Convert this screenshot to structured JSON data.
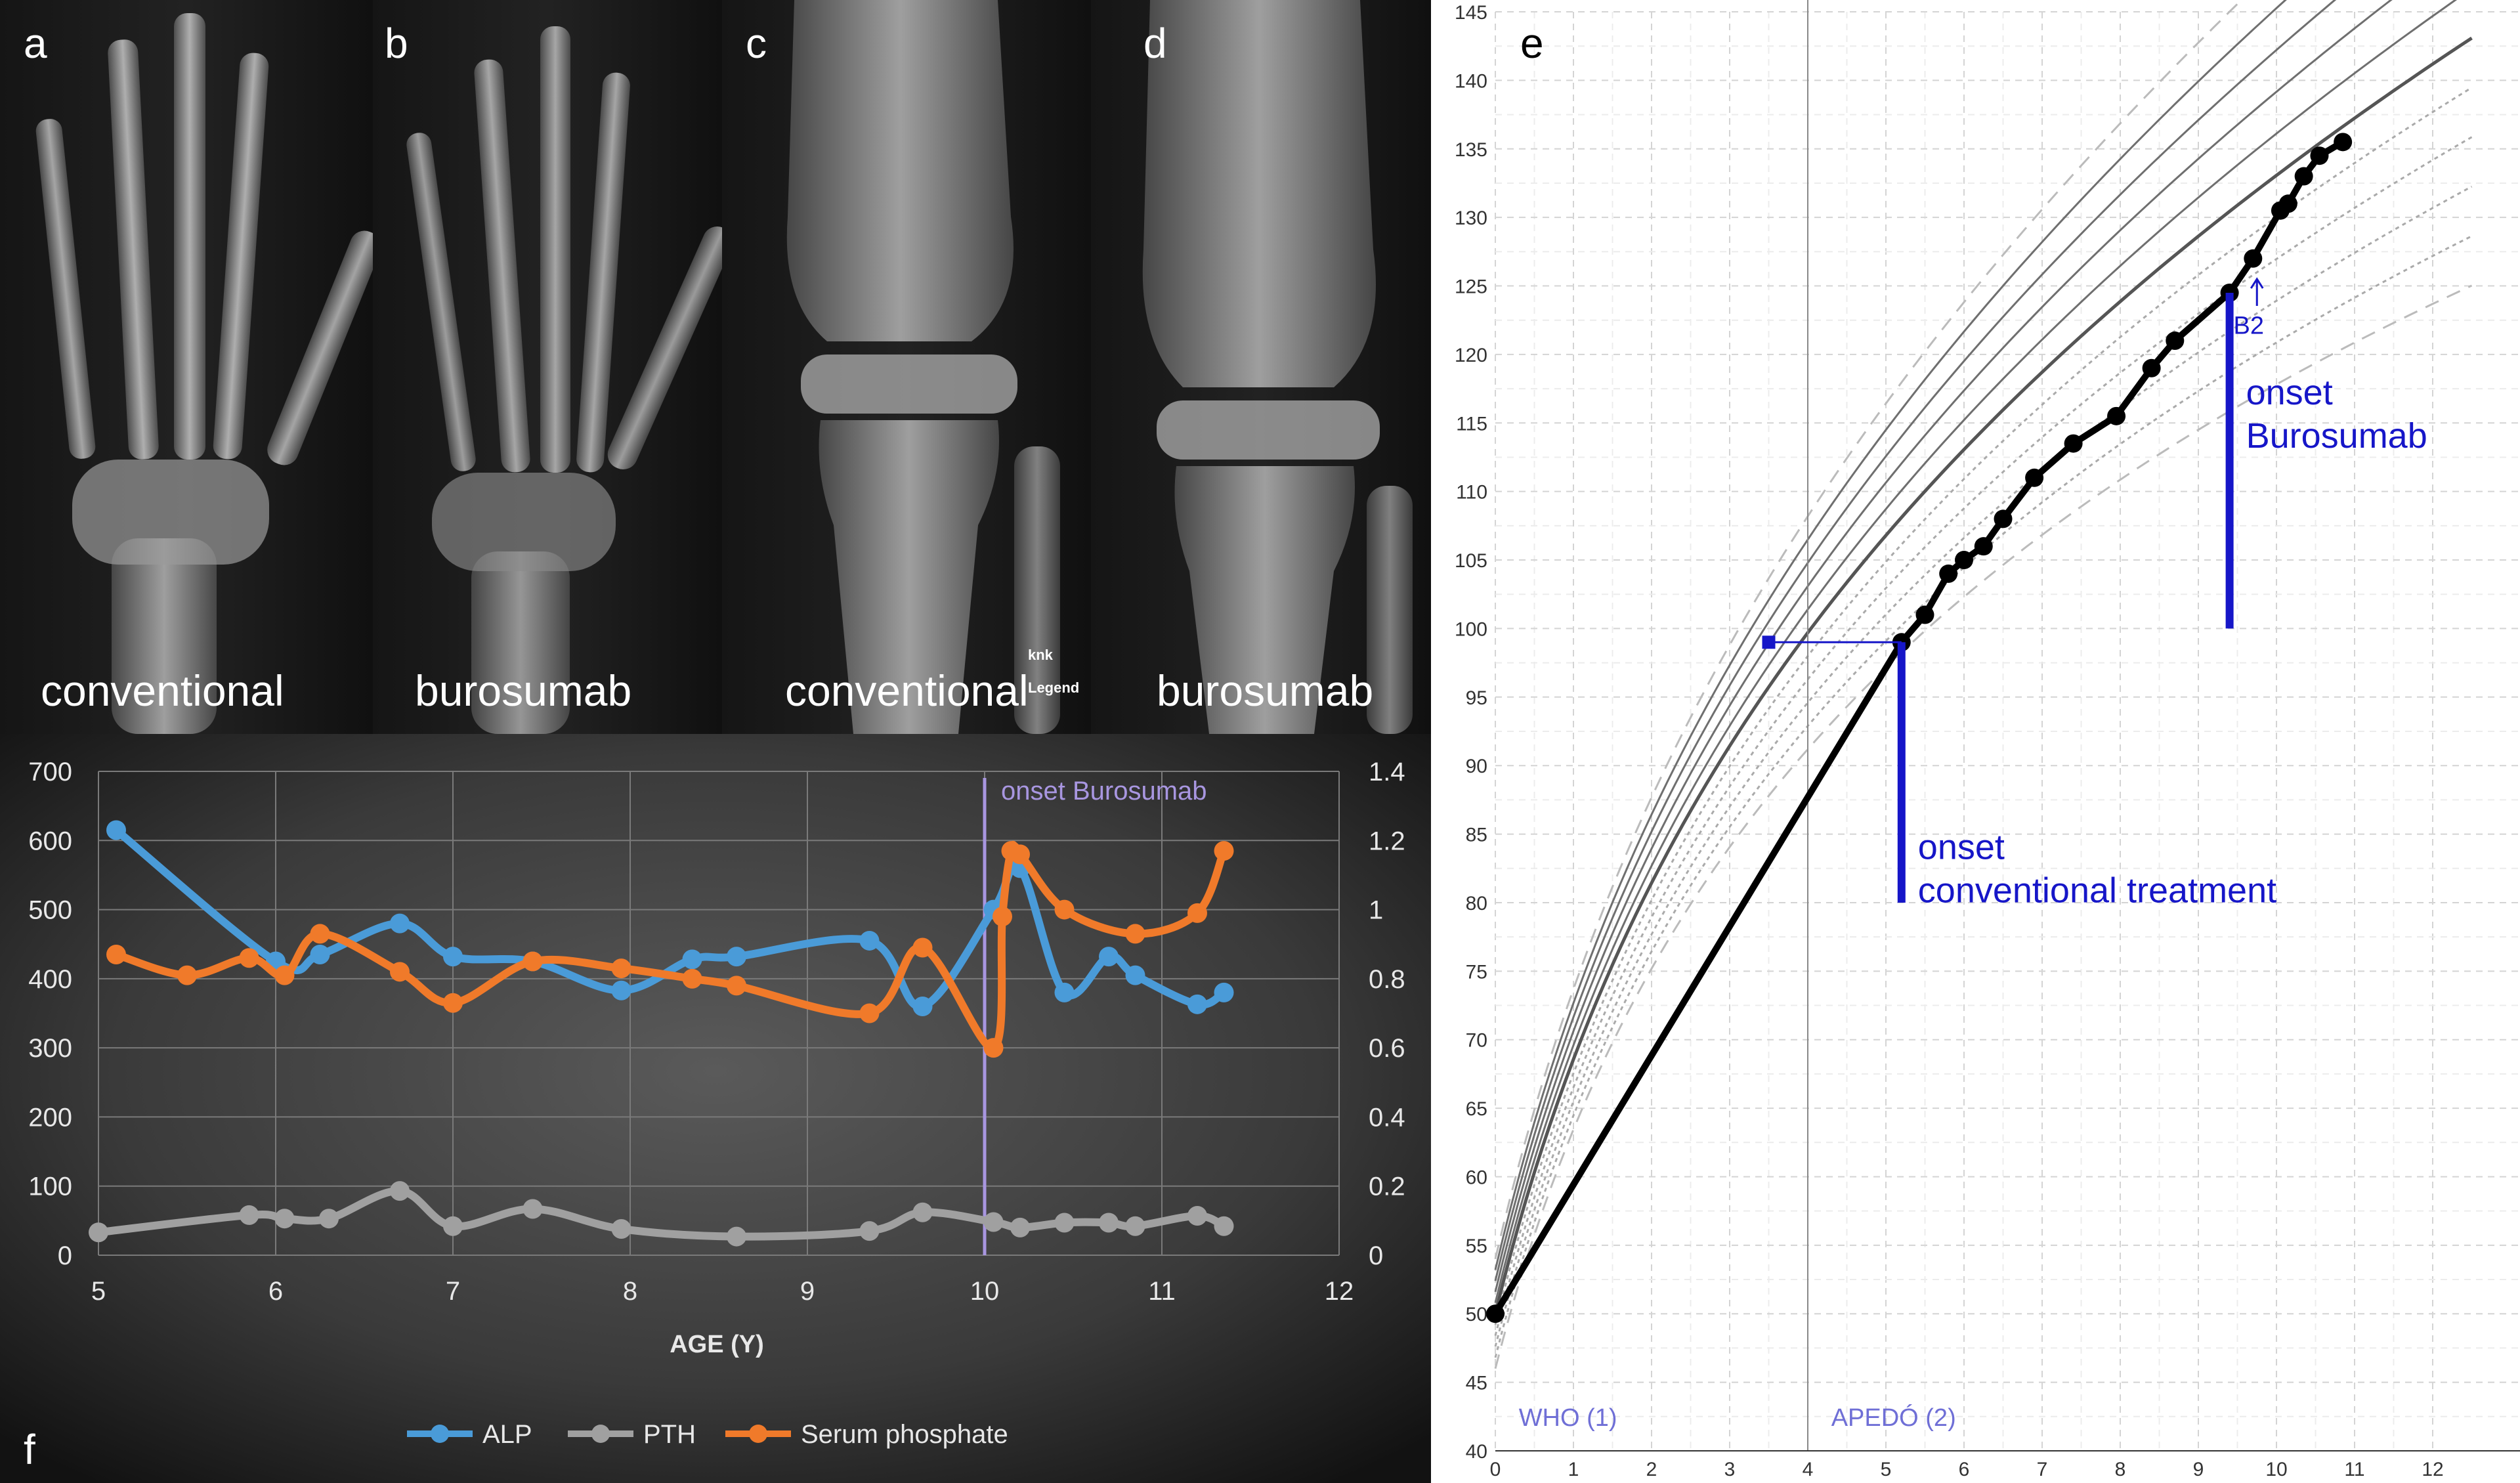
{
  "xray_panels": [
    {
      "letter": "a",
      "label": "conventional",
      "kind": "hand"
    },
    {
      "letter": "b",
      "label": "burosumab",
      "kind": "hand"
    },
    {
      "letter": "c",
      "label": "conventional",
      "kind": "knee",
      "marker_lines": [
        "knk",
        "Legend"
      ]
    },
    {
      "letter": "d",
      "label": "burosumab",
      "kind": "knee"
    }
  ],
  "panel_f": {
    "letter": "f",
    "onset_label": "onset Burosumab",
    "onset_age": 10,
    "colors": {
      "ALP": "#4a9bd8",
      "PTH": "#a0a0a0",
      "Serum phosphate": "#f07a2a",
      "onset": "#a896e0"
    },
    "chart_data": {
      "type": "line",
      "xlabel": "AGE (Y)",
      "xlim": [
        5,
        12
      ],
      "x_ticks": [
        "5",
        "6",
        "7",
        "8",
        "9",
        "10",
        "11",
        "12"
      ],
      "ylim_left": [
        0,
        700
      ],
      "y_ticks_left": [
        "0",
        "100",
        "200",
        "300",
        "400",
        "500",
        "600",
        "700"
      ],
      "ylim_right": [
        0,
        1.4
      ],
      "y_ticks_right": [
        "0",
        "0.2",
        "0.4",
        "0.6",
        "0.8",
        "1",
        "1.2",
        "1.4"
      ],
      "grid": true,
      "legend_position": "bottom",
      "series": [
        {
          "name": "ALP",
          "axis": "left",
          "x": [
            5.1,
            6.0,
            6.25,
            6.7,
            7.0,
            7.45,
            7.95,
            8.35,
            8.6,
            9.35,
            9.65,
            10.05,
            10.2,
            10.45,
            10.7,
            10.85,
            11.2,
            11.35
          ],
          "y": [
            615,
            425,
            435,
            480,
            432,
            425,
            383,
            428,
            432,
            455,
            360,
            500,
            560,
            380,
            432,
            405,
            363,
            380
          ]
        },
        {
          "name": "PTH",
          "axis": "left",
          "x": [
            5.0,
            5.85,
            6.05,
            6.3,
            6.7,
            7.0,
            7.45,
            7.95,
            8.6,
            9.35,
            9.65,
            10.05,
            10.2,
            10.45,
            10.7,
            10.85,
            11.2,
            11.35
          ],
          "y": [
            33,
            58,
            53,
            53,
            93,
            42,
            67,
            38,
            27,
            35,
            62,
            48,
            40,
            47,
            47,
            42,
            57,
            42
          ]
        },
        {
          "name": "Serum phosphate",
          "axis": "right",
          "x": [
            5.1,
            5.5,
            5.85,
            6.05,
            6.25,
            6.7,
            7.0,
            7.45,
            7.95,
            8.35,
            8.6,
            9.35,
            9.65,
            10.05,
            10.1,
            10.15,
            10.2,
            10.45,
            10.85,
            11.2,
            11.35
          ],
          "y": [
            0.87,
            0.81,
            0.86,
            0.81,
            0.93,
            0.82,
            0.73,
            0.85,
            0.83,
            0.8,
            0.78,
            0.7,
            0.89,
            0.6,
            0.98,
            1.17,
            1.16,
            1.0,
            0.93,
            0.99,
            1.17
          ]
        }
      ]
    }
  },
  "panel_e": {
    "letter": "e",
    "chart_data": {
      "type": "line",
      "xlim": [
        0,
        12.5
      ],
      "x_ticks": [
        "0",
        "1",
        "2",
        "3",
        "4",
        "5",
        "6",
        "7",
        "8",
        "9",
        "10",
        "11",
        "12"
      ],
      "ylim": [
        40,
        145
      ],
      "y_ticks": [
        "40",
        "45",
        "50",
        "55",
        "60",
        "65",
        "70",
        "75",
        "80",
        "85",
        "90",
        "95",
        "100",
        "105",
        "110",
        "115",
        "120",
        "125",
        "130",
        "135",
        "140",
        "145"
      ],
      "grid": true,
      "reference_labels": [
        "WHO (1)",
        "APEDÓ (2)"
      ],
      "reference_split_age": 4,
      "percentile_sd_offsets": [
        -2.5,
        -2,
        -1.5,
        -1,
        -0.5,
        0,
        0.5,
        1,
        1.5,
        2,
        2.5
      ],
      "patient_series": {
        "x": [
          0,
          5.2,
          5.5,
          5.8,
          6.0,
          6.25,
          6.5,
          6.9,
          7.4,
          7.95,
          8.4,
          8.7,
          9.4,
          9.7,
          10.05,
          10.15,
          10.35,
          10.55,
          10.85
        ],
        "y": [
          50,
          99,
          101,
          104,
          105,
          106,
          108,
          111,
          113.5,
          115.5,
          119,
          121,
          124.5,
          127,
          130.5,
          131,
          133,
          134.5,
          135.5
        ]
      },
      "bone_age_point": {
        "x": 3.5,
        "y": 99
      },
      "annotations": [
        {
          "lines": [
            "onset",
            "conventional treatment"
          ],
          "x": 5.2,
          "y_from": 99,
          "y_to": 80
        },
        {
          "lines": [
            "onset",
            "Burosumab"
          ],
          "x": 9.4,
          "y_from": 124.5,
          "y_to": 100
        }
      ],
      "b2_label": "B2",
      "b2_age": 9.75,
      "accent_color": "#1616c8"
    }
  }
}
